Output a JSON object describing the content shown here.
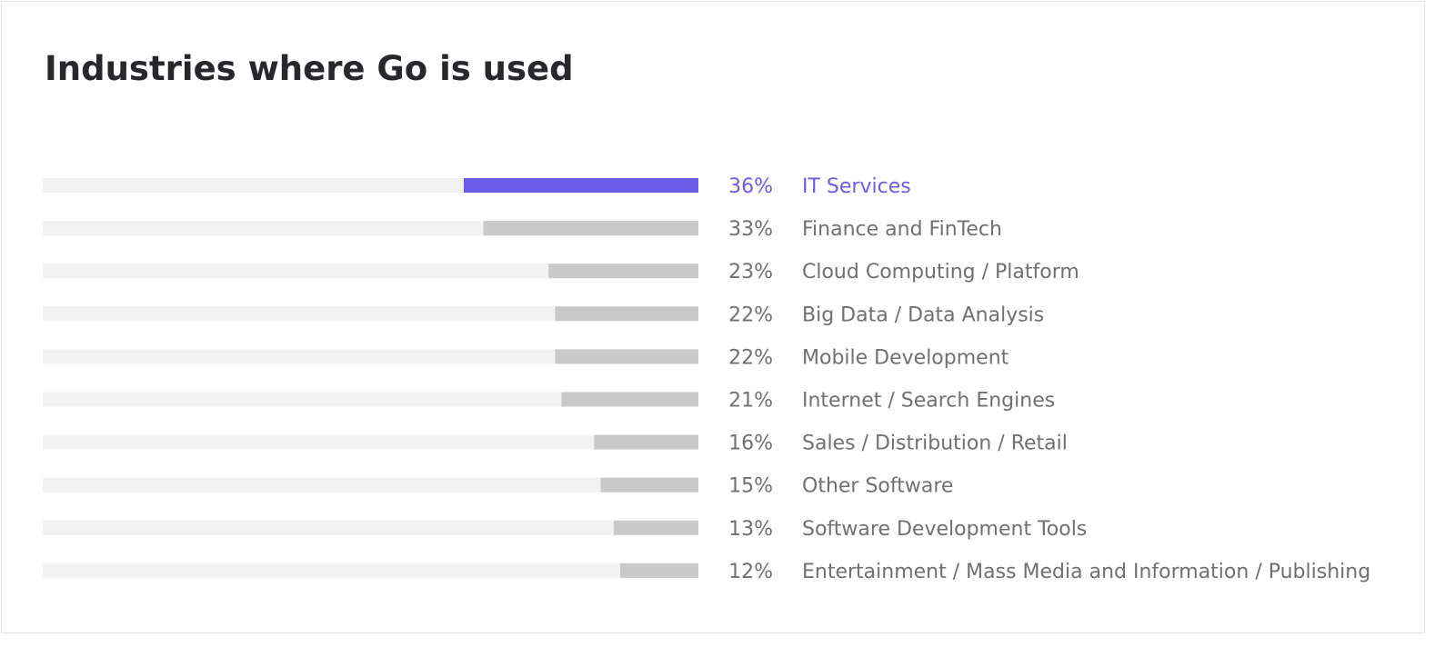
{
  "title": "Industries where Go is used",
  "colors": {
    "highlight": "#6b5ce7",
    "bar": "#c9c9c9",
    "track": "#f2f2f2",
    "text": "#707070",
    "title": "#27282c"
  },
  "chart_data": {
    "type": "bar",
    "orientation": "horizontal",
    "title": "Industries where Go is used",
    "unit": "%",
    "xlim": [
      0,
      100
    ],
    "grid": false,
    "highlighted_category": "IT Services",
    "categories": [
      "IT Services",
      "Finance and FinTech",
      "Cloud Computing / Platform",
      "Big Data / Data Analysis",
      "Mobile Development",
      "Internet / Search Engines",
      "Sales / Distribution / Retail",
      "Other Software",
      "Software Development Tools",
      "Entertainment / Mass Media and Information / Publishing"
    ],
    "values": [
      36,
      33,
      23,
      22,
      22,
      21,
      16,
      15,
      13,
      12
    ],
    "value_labels": [
      "36%",
      "33%",
      "23%",
      "22%",
      "22%",
      "21%",
      "16%",
      "15%",
      "13%",
      "12%"
    ]
  }
}
